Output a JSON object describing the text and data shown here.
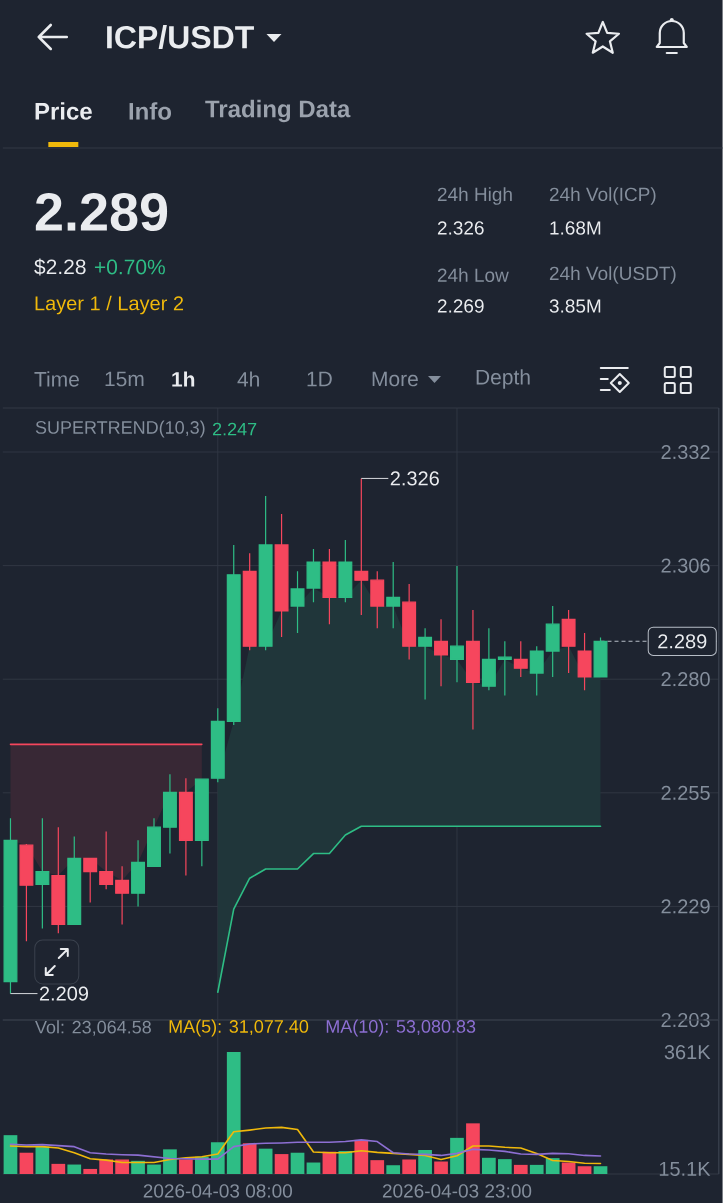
{
  "chart_data": [
    {
      "type": "other",
      "title": "ICP/USDT",
      "annotations": [
        "Price",
        "Info",
        "Trading Data",
        "2.289",
        "$2.28",
        "+0.70%",
        "Layer 1 / Layer 2",
        "24h High",
        "2.326",
        "24h Vol(ICP)",
        "1.68M",
        "24h Low",
        "2.269",
        "24h Vol(USDT)",
        "3.85M",
        "Time",
        "15m",
        "1h",
        "4h",
        "1D",
        "More",
        "Depth"
      ]
    },
    {
      "type": "candlestick",
      "x": [
        "2026-04-02T19:00",
        "2026-04-02T20:00",
        "2026-04-02T21:00",
        "2026-04-02T22:00",
        "2026-04-02T23:00",
        "2026-04-03T00:00",
        "2026-04-03T01:00",
        "2026-04-03T02:00",
        "2026-04-03T03:00",
        "2026-04-03T04:00",
        "2026-04-03T05:00",
        "2026-04-03T06:00",
        "2026-04-03T07:00",
        "2026-04-03T08:00",
        "2026-04-03T09:00",
        "2026-04-03T10:00",
        "2026-04-03T11:00",
        "2026-04-03T12:00",
        "2026-04-03T13:00",
        "2026-04-03T14:00",
        "2026-04-03T15:00",
        "2026-04-03T16:00",
        "2026-04-03T17:00",
        "2026-04-03T18:00",
        "2026-04-03T19:00",
        "2026-04-03T20:00",
        "2026-04-03T21:00",
        "2026-04-03T22:00",
        "2026-04-03T23:00",
        "2026-04-04T00:00",
        "2026-04-04T01:00",
        "2026-04-04T02:00",
        "2026-04-04T03:00",
        "2026-04-04T04:00",
        "2026-04-04T05:00",
        "2026-04-04T06:00",
        "2026-04-04T07:00",
        "2026-04-04T08:00"
      ],
      "ohlc": [
        [
          2.2117,
          2.2488,
          2.209,
          2.2438
        ],
        [
          2.2427,
          2.243,
          2.2209,
          2.2336
        ],
        [
          2.2338,
          2.2488,
          2.2238,
          2.2367
        ],
        [
          2.2358,
          2.2468,
          2.2227,
          2.2247
        ],
        [
          2.2247,
          2.2447,
          2.2247,
          2.2397
        ],
        [
          2.2397,
          2.2397,
          2.2297,
          2.2367
        ],
        [
          2.2367,
          2.2458,
          2.2327,
          2.2338
        ],
        [
          2.2347,
          2.2379,
          2.2247,
          2.2318
        ],
        [
          2.2318,
          2.2438,
          2.2288,
          2.2388
        ],
        [
          2.2379,
          2.2488,
          2.2379,
          2.2468
        ],
        [
          2.2468,
          2.2588,
          2.2408,
          2.2547
        ],
        [
          2.2547,
          2.2579,
          2.2358,
          2.2438
        ],
        [
          2.2438,
          2.2577,
          2.2379,
          2.2577
        ],
        [
          2.2579,
          2.2738,
          2.257,
          2.2708
        ],
        [
          2.2708,
          2.3109,
          2.27,
          2.3041
        ],
        [
          2.3049,
          2.309,
          2.287,
          2.2879
        ],
        [
          2.2879,
          2.322,
          2.287,
          2.3109
        ],
        [
          2.3109,
          2.3179,
          2.29,
          2.2959
        ],
        [
          2.297,
          2.3049,
          2.2909,
          2.3009
        ],
        [
          2.3011,
          2.31,
          2.2979,
          2.307
        ],
        [
          2.307,
          2.31,
          2.2929,
          2.299
        ],
        [
          2.299,
          2.312,
          2.2979,
          2.307
        ],
        [
          2.3049,
          2.326,
          2.295,
          2.3029
        ],
        [
          2.3029,
          2.3049,
          2.292,
          2.297
        ],
        [
          2.297,
          2.307,
          2.292,
          2.299
        ],
        [
          2.2979,
          2.302,
          2.2849,
          2.2879
        ],
        [
          2.2879,
          2.292,
          2.2758,
          2.2899
        ],
        [
          2.289,
          2.294,
          2.2788,
          2.2859
        ],
        [
          2.2849,
          2.3061,
          2.2797,
          2.2879
        ],
        [
          2.289,
          2.2961,
          2.269,
          2.2797
        ],
        [
          2.2788,
          2.292,
          2.2779,
          2.2849
        ],
        [
          2.2849,
          2.289,
          2.2767,
          2.2854
        ],
        [
          2.2849,
          2.289,
          2.2809,
          2.2829
        ],
        [
          2.2818,
          2.2879,
          2.2767,
          2.2868
        ],
        [
          2.2868,
          2.297,
          2.2809,
          2.2929
        ],
        [
          2.294,
          2.2961,
          2.2818,
          2.2879
        ],
        [
          2.2868,
          2.2909,
          2.2779,
          2.2809
        ],
        [
          2.2809,
          2.2899,
          2.2809,
          2.289
        ]
      ],
      "colors": [
        "#2ebd85",
        "#f6465d",
        "#2ebd85",
        "#f6465d",
        "#2ebd85",
        "#f6465d",
        "#f6465d",
        "#f6465d",
        "#2ebd85",
        "#2ebd85",
        "#2ebd85",
        "#f6465d",
        "#2ebd85",
        "#2ebd85",
        "#2ebd85",
        "#f6465d",
        "#2ebd85",
        "#f6465d",
        "#2ebd85",
        "#2ebd85",
        "#f6465d",
        "#2ebd85",
        "#f6465d",
        "#f6465d",
        "#2ebd85",
        "#f6465d",
        "#2ebd85",
        "#f6465d",
        "#2ebd85",
        "#f6465d",
        "#2ebd85",
        "#2ebd85",
        "#f6465d",
        "#2ebd85",
        "#2ebd85",
        "#f6465d",
        "#f6465d",
        "#2ebd85"
      ],
      "series": [
        {
          "type": "line",
          "color": "#f6465d",
          "values": [
            2.2656,
            2.2656,
            2.2656,
            2.2656,
            2.2656,
            2.2656,
            2.2656,
            2.2656,
            2.2656,
            2.2656,
            2.2656,
            2.2656,
            2.2656,
            null,
            null,
            null,
            null,
            null,
            null,
            null,
            null,
            null,
            null,
            null,
            null,
            null,
            null,
            null,
            null,
            null,
            null,
            null,
            null,
            null,
            null,
            null,
            null,
            null
          ],
          "lower": [
            2.2438,
            2.2427,
            2.2367,
            2.2358,
            2.2397,
            2.2397,
            2.2367,
            2.2347,
            2.2388,
            2.2468,
            2.2547,
            2.2547,
            2.2577,
            null,
            null,
            null,
            null,
            null,
            null,
            null,
            null,
            null,
            null,
            null,
            null,
            null,
            null,
            null,
            null,
            null,
            null,
            null,
            null,
            null,
            null,
            null,
            null,
            null
          ],
          "upper": [
            2.2656,
            2.2656,
            2.2656,
            2.2656,
            2.2656,
            2.2656,
            2.2656,
            2.2656,
            2.2656,
            2.2656,
            2.2656,
            2.2656,
            2.2656,
            null,
            null,
            null,
            null,
            null,
            null,
            null,
            null,
            null,
            null,
            null,
            null,
            null,
            null,
            null,
            null,
            null,
            null,
            null,
            null,
            null,
            null,
            null,
            null,
            null
          ]
        },
        {
          "type": "line",
          "color": "#2ebd85",
          "values": [
            null,
            null,
            null,
            null,
            null,
            null,
            null,
            null,
            null,
            null,
            null,
            null,
            null,
            2.2093,
            2.2282,
            2.2352,
            2.2373,
            2.2373,
            2.2373,
            2.2408,
            2.2408,
            2.245,
            2.247,
            2.247,
            2.247,
            2.247,
            2.247,
            2.247,
            2.247,
            2.247,
            2.247,
            2.247,
            2.247,
            2.247,
            2.247,
            2.247,
            2.247,
            2.247
          ],
          "lower": [
            null,
            null,
            null,
            null,
            null,
            null,
            null,
            null,
            null,
            null,
            null,
            null,
            null,
            2.2093,
            2.2282,
            2.2352,
            2.2373,
            2.2373,
            2.2373,
            2.2408,
            2.2408,
            2.245,
            2.247,
            2.247,
            2.247,
            2.247,
            2.247,
            2.247,
            2.247,
            2.247,
            2.247,
            2.247,
            2.247,
            2.247,
            2.247,
            2.247,
            2.247,
            2.247
          ],
          "upper": [
            null,
            null,
            null,
            null,
            null,
            null,
            null,
            null,
            null,
            null,
            null,
            null,
            null,
            2.2579,
            2.2708,
            2.2879,
            2.2879,
            2.2959,
            2.297,
            2.3011,
            2.299,
            2.299,
            2.3029,
            2.297,
            2.297,
            2.2879,
            2.2879,
            2.2859,
            2.2849,
            2.2797,
            2.2788,
            2.2849,
            2.2829,
            2.2818,
            2.2868,
            2.2879,
            2.2809,
            2.2809
          ]
        }
      ],
      "xlim": [
        "2026-04-02T18:31",
        "2026-04-04T15:25"
      ],
      "xticks": [
        {
          "value": "2026-04-03T08:00",
          "label": null
        },
        {
          "value": "2026-04-03T23:00",
          "label": null
        }
      ],
      "ylim": [
        2.203,
        2.342
      ],
      "yticks": [
        2.332,
        {
          "value": 2.3062,
          "label": "2.306"
        },
        {
          "value": 2.2804,
          "label": "2.280"
        },
        {
          "value": 2.2546,
          "label": "2.255"
        },
        {
          "value": 2.2288,
          "label": "2.229"
        },
        2.203
      ],
      "tick_labels": "y",
      "grid": true,
      "ref_lines": [
        {
          "axis": "y",
          "value": 2.289,
          "label": "2.289",
          "line_style": "dashed",
          "color": "#b7bdc6"
        }
      ],
      "annotations": [
        "SUPERTREND(10,3)",
        "2.247",
        {
          "text": "2.326",
          "x": "2026-04-03T17:00",
          "y": 2.326
        },
        {
          "text": "2.209",
          "x": "2026-04-02T19:00",
          "y": 2.209
        }
      ]
    },
    {
      "type": "bar",
      "x": [
        "2026-04-02T19:00",
        "2026-04-02T20:00",
        "2026-04-02T21:00",
        "2026-04-02T22:00",
        "2026-04-02T23:00",
        "2026-04-03T00:00",
        "2026-04-03T01:00",
        "2026-04-03T02:00",
        "2026-04-03T03:00",
        "2026-04-03T04:00",
        "2026-04-03T05:00",
        "2026-04-03T06:00",
        "2026-04-03T07:00",
        "2026-04-03T08:00",
        "2026-04-03T09:00",
        "2026-04-03T10:00",
        "2026-04-03T11:00",
        "2026-04-03T12:00",
        "2026-04-03T13:00",
        "2026-04-03T14:00",
        "2026-04-03T15:00",
        "2026-04-03T16:00",
        "2026-04-03T17:00",
        "2026-04-03T18:00",
        "2026-04-03T19:00",
        "2026-04-03T20:00",
        "2026-04-03T21:00",
        "2026-04-03T22:00",
        "2026-04-03T23:00",
        "2026-04-04T00:00",
        "2026-04-04T01:00",
        "2026-04-04T02:00",
        "2026-04-04T03:00",
        "2026-04-04T04:00",
        "2026-04-04T05:00",
        "2026-04-04T06:00",
        "2026-04-04T07:00",
        "2026-04-04T08:00"
      ],
      "series": [
        {
          "values": [
            115000,
            63000,
            81000,
            30000,
            28000,
            15000,
            43000,
            43000,
            39000,
            28000,
            73000,
            43000,
            51000,
            94000,
            361000,
            91000,
            75000,
            59000,
            63000,
            34000,
            66000,
            68000,
            101000,
            41000,
            26000,
            43000,
            71000,
            37000,
            107000,
            150000,
            48000,
            44000,
            27000,
            27000,
            47000,
            34000,
            23000,
            23064.58
          ],
          "colors": [
            "#2ebd85",
            "#f6465d",
            "#2ebd85",
            "#f6465d",
            "#2ebd85",
            "#f6465d",
            "#f6465d",
            "#f6465d",
            "#2ebd85",
            "#2ebd85",
            "#2ebd85",
            "#f6465d",
            "#2ebd85",
            "#2ebd85",
            "#2ebd85",
            "#f6465d",
            "#2ebd85",
            "#f6465d",
            "#2ebd85",
            "#2ebd85",
            "#f6465d",
            "#2ebd85",
            "#f6465d",
            "#f6465d",
            "#2ebd85",
            "#f6465d",
            "#2ebd85",
            "#f6465d",
            "#2ebd85",
            "#f6465d",
            "#2ebd85",
            "#2ebd85",
            "#f6465d",
            "#2ebd85",
            "#2ebd85",
            "#f6465d",
            "#f6465d",
            "#2ebd85"
          ]
        },
        {
          "type": "line",
          "name": "MA(5): 31,077.40",
          "color": "#f0b90b",
          "values": [
            83000,
            81000,
            81000,
            77000,
            63000,
            45000,
            41000,
            34000,
            34000,
            34000,
            43000,
            48000,
            51000,
            59000,
            125000,
            130000,
            136000,
            138000,
            132000,
            65000,
            63000,
            63000,
            69000,
            64000,
            61000,
            58000,
            55000,
            43000,
            54000,
            83000,
            83000,
            79000,
            77000,
            61000,
            40000,
            37000,
            32000,
            31077.4
          ]
        },
        {
          "type": "line",
          "name": "MA(10): 53,080.83",
          "color": "#8d6fd3",
          "values": [
            88000,
            86000,
            87000,
            84000,
            81000,
            63000,
            59000,
            57000,
            56000,
            51000,
            46000,
            45000,
            44000,
            44000,
            81000,
            89000,
            91000,
            92000,
            94000,
            94000,
            94000,
            96000,
            101000,
            96000,
            63000,
            59000,
            58000,
            55000,
            61000,
            73000,
            71000,
            67000,
            59000,
            58000,
            61000,
            60000,
            55000,
            53080.83
          ]
        }
      ],
      "xlim": [
        "2026-04-02T18:31",
        "2026-04-04T15:25"
      ],
      "xticks": [
        {
          "value": "2026-04-03T08:00",
          "label": "2026-04-03 08:00"
        },
        {
          "value": "2026-04-03T23:00",
          "label": "2026-04-03 23:00"
        }
      ],
      "ylim": [
        0,
        456000
      ],
      "yticks": [
        {
          "value": 361000,
          "label": "361K"
        },
        {
          "value": 15100,
          "label": "15.1K"
        }
      ],
      "grid": "x",
      "legend": "top left",
      "annotations": [
        "Vol: 23,064.58"
      ]
    }
  ]
}
